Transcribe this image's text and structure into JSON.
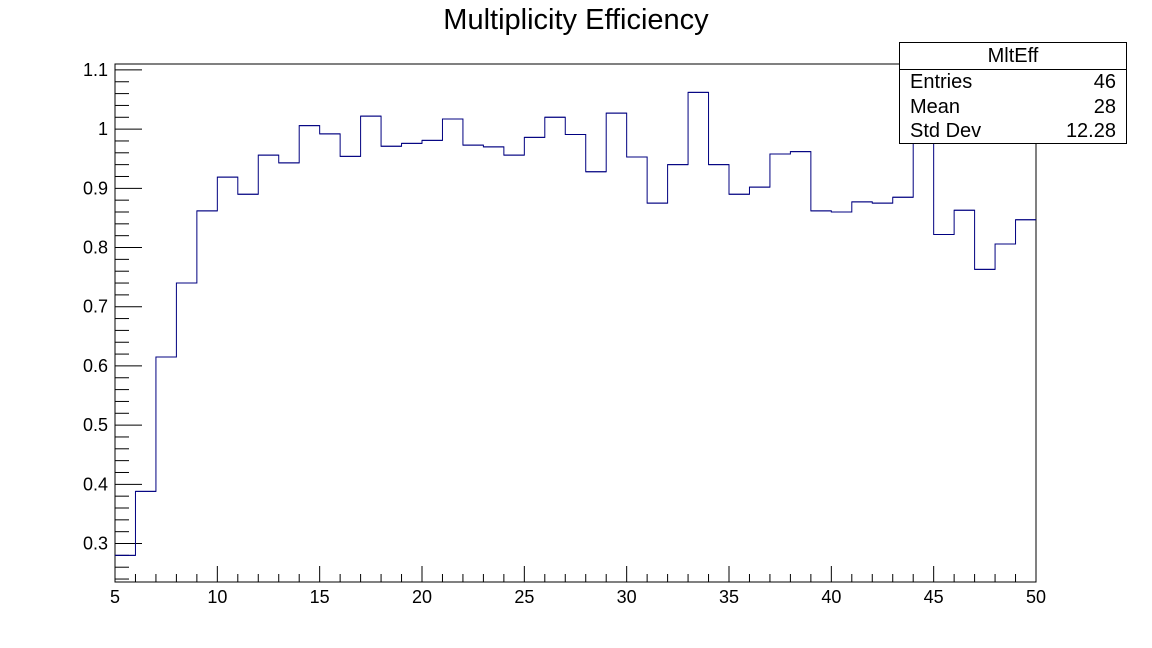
{
  "chart_data": {
    "type": "histogram",
    "title": "Multiplicity Efficiency",
    "xlabel": "",
    "ylabel": "",
    "xlim": [
      5,
      50
    ],
    "ylim": [
      0.235,
      1.11
    ],
    "x_ticks": [
      5,
      10,
      15,
      20,
      25,
      30,
      35,
      40,
      45,
      50
    ],
    "y_ticks": [
      0.3,
      0.4,
      0.5,
      0.6,
      0.7,
      0.8,
      0.9,
      1,
      1.1
    ],
    "x_tick_labels": [
      "5",
      "10",
      "15",
      "20",
      "25",
      "30",
      "35",
      "40",
      "45",
      "50"
    ],
    "y_tick_labels": [
      "0.3",
      "0.4",
      "0.5",
      "0.6",
      "0.7",
      "0.8",
      "0.9",
      "1",
      "1.1"
    ],
    "bin_edges_start": 5,
    "bin_width": 1,
    "line_color": "#000080",
    "values": [
      0.28,
      0.388,
      0.615,
      0.74,
      0.862,
      0.919,
      0.89,
      0.956,
      0.943,
      1.006,
      0.992,
      0.954,
      1.022,
      0.971,
      0.976,
      0.981,
      1.017,
      0.973,
      0.97,
      0.956,
      0.986,
      1.02,
      0.991,
      0.928,
      1.027,
      0.953,
      0.875,
      0.94,
      1.062,
      0.94,
      0.89,
      0.902,
      0.958,
      0.962,
      0.862,
      0.86,
      0.877,
      0.875,
      0.885,
      1.0,
      0.822,
      0.863,
      0.763,
      0.806,
      0.847
    ],
    "stats_box": {
      "name": "MltEff",
      "rows": [
        {
          "label": "Entries",
          "value": "46"
        },
        {
          "label": "Mean",
          "value": "28"
        },
        {
          "label": "Std Dev",
          "value": "12.28"
        }
      ]
    }
  }
}
